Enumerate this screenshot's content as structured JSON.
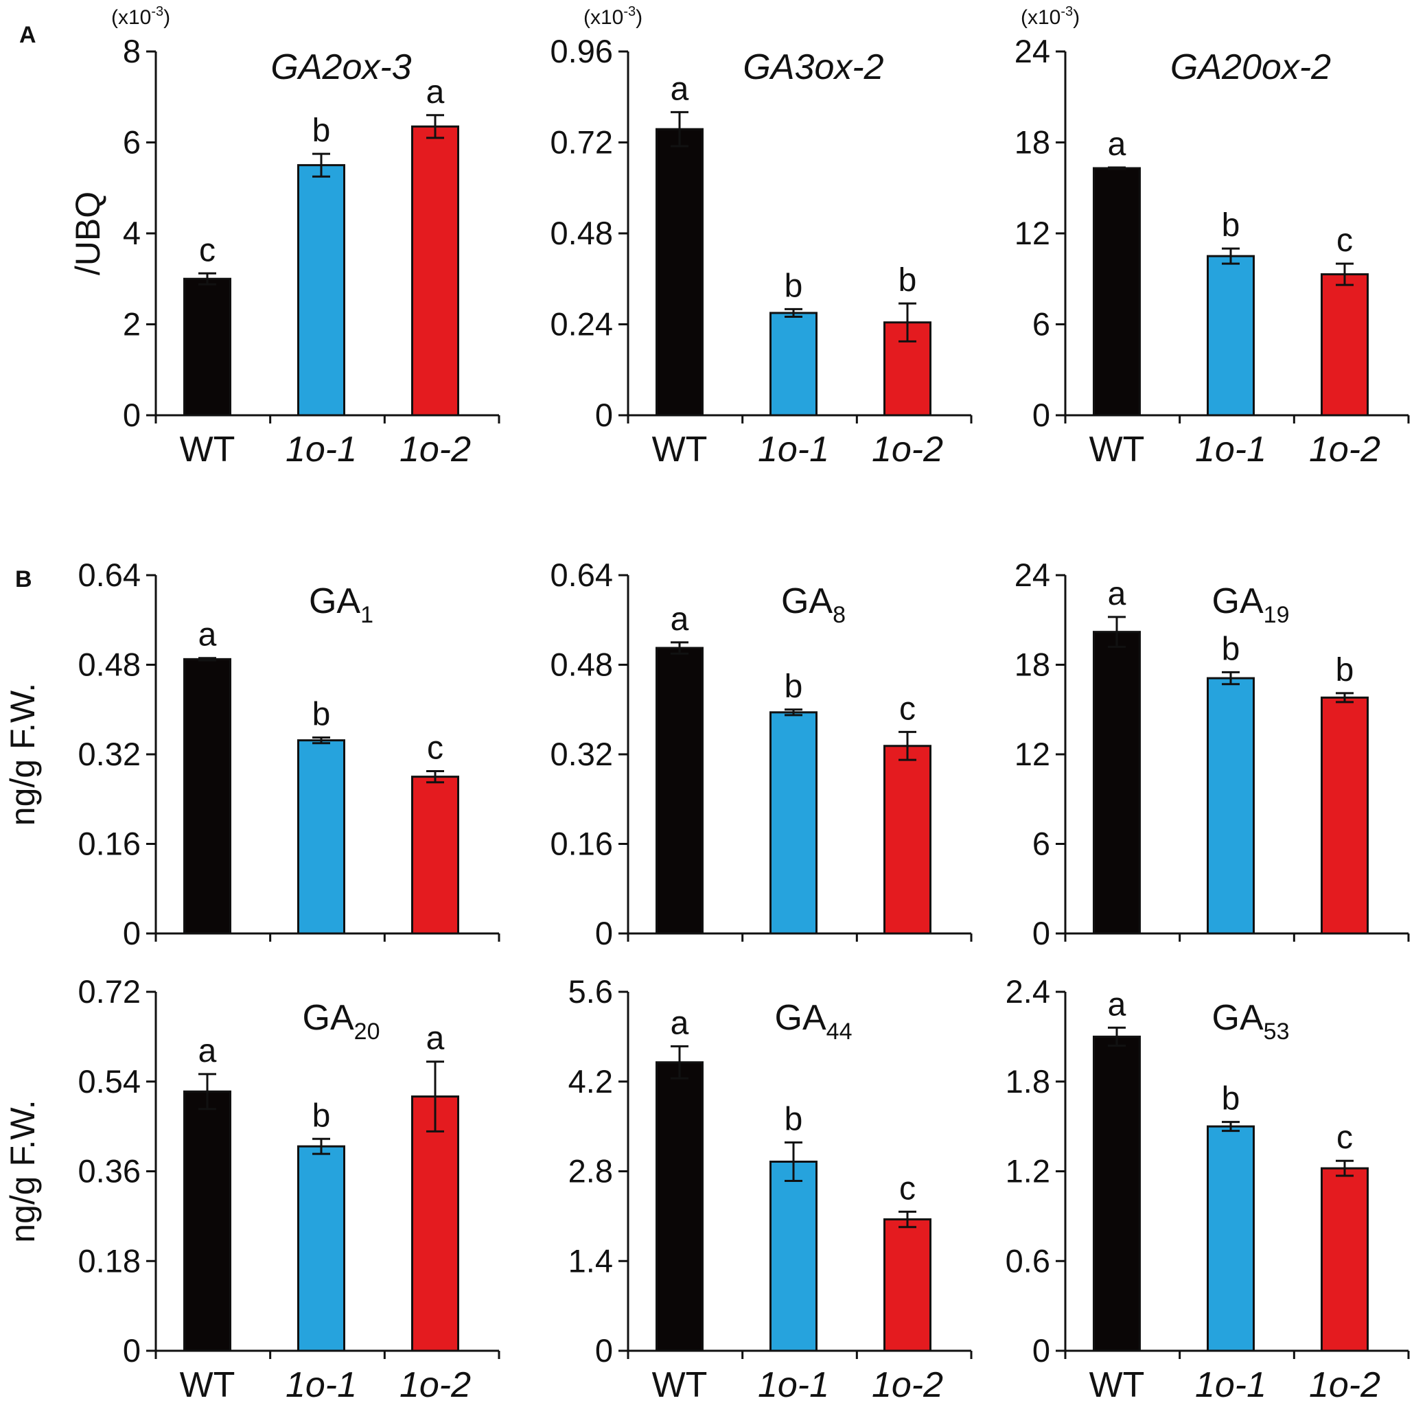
{
  "panel_labels": [
    "A",
    "B"
  ],
  "colors": {
    "WT": "#0a0606",
    "1o-1": "#26a3dd",
    "1o-2": "#e41b1f"
  },
  "chart_data": [
    {
      "type": "bar",
      "title": "GA2ox-3",
      "title_italic": true,
      "categories": [
        "WT",
        "1o-1",
        "1o-2"
      ],
      "categories_italic": [
        false,
        true,
        true
      ],
      "values": [
        3.0,
        5.5,
        6.35
      ],
      "errors": [
        0.12,
        0.25,
        0.25
      ],
      "letters": [
        "c",
        "b",
        "a"
      ],
      "ylabel": "/UBQ",
      "multiplier": "(x10-3)",
      "multiplier_base": "(x10",
      "multiplier_exp": "-3",
      "multiplier_close": ")",
      "ylim": [
        0,
        8
      ],
      "yticks": [
        "0",
        "2",
        "4",
        "6",
        "8"
      ],
      "show_xlabels": true
    },
    {
      "type": "bar",
      "title": "GA3ox-2",
      "title_italic": true,
      "categories": [
        "WT",
        "1o-1",
        "1o-2"
      ],
      "categories_italic": [
        false,
        true,
        true
      ],
      "values": [
        0.755,
        0.27,
        0.245
      ],
      "errors": [
        0.045,
        0.01,
        0.05
      ],
      "letters": [
        "a",
        "b",
        "b"
      ],
      "ylabel": "",
      "multiplier": "(x10-3)",
      "multiplier_base": "(x10",
      "multiplier_exp": "-3",
      "multiplier_close": ")",
      "ylim": [
        0,
        0.96
      ],
      "yticks": [
        "0",
        "0.24",
        "0.48",
        "0.72",
        "0.96"
      ],
      "show_xlabels": true
    },
    {
      "type": "bar",
      "title": "GA20ox-2",
      "title_italic": true,
      "categories": [
        "WT",
        "1o-1",
        "1o-2"
      ],
      "categories_italic": [
        false,
        true,
        true
      ],
      "values": [
        16.3,
        10.5,
        9.3
      ],
      "errors": [
        0.05,
        0.5,
        0.7
      ],
      "letters": [
        "a",
        "b",
        "c"
      ],
      "ylabel": "",
      "multiplier": "(x10-3)",
      "multiplier_base": "(x10",
      "multiplier_exp": "-3",
      "multiplier_close": ")",
      "ylim": [
        0,
        24
      ],
      "yticks": [
        "0",
        "6",
        "12",
        "18",
        "24"
      ],
      "show_xlabels": true
    },
    {
      "type": "bar",
      "title": "GA1",
      "title_base": "GA",
      "title_sub": "1",
      "title_italic": false,
      "categories": [
        "WT",
        "1o-1",
        "1o-2"
      ],
      "categories_italic": [
        false,
        true,
        true
      ],
      "values": [
        0.49,
        0.345,
        0.28
      ],
      "errors": [
        0.002,
        0.005,
        0.01
      ],
      "letters": [
        "a",
        "b",
        "c"
      ],
      "ylabel": "ng/g F.W.",
      "ylim": [
        0,
        0.64
      ],
      "yticks": [
        "0",
        "0.16",
        "0.32",
        "0.48",
        "0.64"
      ],
      "show_xlabels": false
    },
    {
      "type": "bar",
      "title": "GA8",
      "title_base": "GA",
      "title_sub": "8",
      "title_italic": false,
      "categories": [
        "WT",
        "1o-1",
        "1o-2"
      ],
      "categories_italic": [
        false,
        true,
        true
      ],
      "values": [
        0.51,
        0.395,
        0.335
      ],
      "errors": [
        0.01,
        0.005,
        0.025
      ],
      "letters": [
        "a",
        "b",
        "c"
      ],
      "ylabel": "",
      "ylim": [
        0,
        0.64
      ],
      "yticks": [
        "0",
        "0.16",
        "0.32",
        "0.48",
        "0.64"
      ],
      "show_xlabels": false
    },
    {
      "type": "bar",
      "title": "GA19",
      "title_base": "GA",
      "title_sub": "19",
      "title_italic": false,
      "categories": [
        "WT",
        "1o-1",
        "1o-2"
      ],
      "categories_italic": [
        false,
        true,
        true
      ],
      "values": [
        20.2,
        17.1,
        15.8
      ],
      "errors": [
        1.0,
        0.4,
        0.3
      ],
      "letters": [
        "a",
        "b",
        "b"
      ],
      "ylabel": "",
      "ylim": [
        0,
        24
      ],
      "yticks": [
        "0",
        "6",
        "12",
        "18",
        "24"
      ],
      "show_xlabels": false
    },
    {
      "type": "bar",
      "title": "GA20",
      "title_base": "GA",
      "title_sub": "20",
      "title_italic": false,
      "categories": [
        "WT",
        "1o-1",
        "1o-2"
      ],
      "categories_italic": [
        false,
        true,
        true
      ],
      "values": [
        0.52,
        0.41,
        0.51
      ],
      "errors": [
        0.035,
        0.015,
        0.07
      ],
      "letters": [
        "a",
        "b",
        "a"
      ],
      "ylabel": "ng/g F.W.",
      "ylim": [
        0,
        0.72
      ],
      "yticks": [
        "0",
        "0.18",
        "0.36",
        "0.54",
        "0.72"
      ],
      "show_xlabels": true
    },
    {
      "type": "bar",
      "title": "GA44",
      "title_base": "GA",
      "title_sub": "44",
      "title_italic": false,
      "categories": [
        "WT",
        "1o-1",
        "1o-2"
      ],
      "categories_italic": [
        false,
        true,
        true
      ],
      "values": [
        4.5,
        2.95,
        2.05
      ],
      "errors": [
        0.25,
        0.3,
        0.12
      ],
      "letters": [
        "a",
        "b",
        "c"
      ],
      "ylabel": "",
      "ylim": [
        0,
        5.6
      ],
      "yticks": [
        "0",
        "1.4",
        "2.8",
        "4.2",
        "5.6"
      ],
      "show_xlabels": true
    },
    {
      "type": "bar",
      "title": "GA53",
      "title_base": "GA",
      "title_sub": "53",
      "title_italic": false,
      "categories": [
        "WT",
        "1o-1",
        "1o-2"
      ],
      "categories_italic": [
        false,
        true,
        true
      ],
      "values": [
        2.1,
        1.5,
        1.22
      ],
      "errors": [
        0.06,
        0.03,
        0.05
      ],
      "letters": [
        "a",
        "b",
        "c"
      ],
      "ylabel": "",
      "ylim": [
        0,
        2.4
      ],
      "yticks": [
        "0",
        "0.6",
        "1.2",
        "1.8",
        "2.4"
      ],
      "show_xlabels": true
    }
  ]
}
